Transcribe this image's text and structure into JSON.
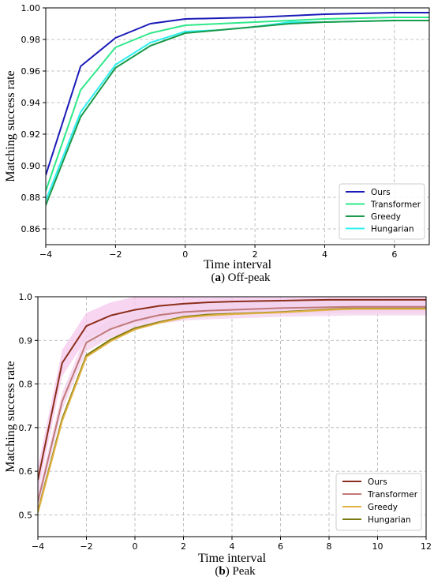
{
  "chart_data": [
    {
      "type": "line",
      "xlabel": "Time interval",
      "ylabel": "Matching success rate",
      "xlim": [
        -4,
        7
      ],
      "ylim": [
        0.85,
        1.0
      ],
      "xticks": [
        -4,
        -2,
        0,
        2,
        4,
        6
      ],
      "xtick_labels": [
        "−4",
        "−2",
        "0",
        "2",
        "4",
        "6"
      ],
      "yticks": [
        0.86,
        0.88,
        0.9,
        0.92,
        0.94,
        0.96,
        0.98,
        1.0
      ],
      "ytick_labels": [
        "0.86",
        "0.88",
        "0.90",
        "0.92",
        "0.94",
        "0.96",
        "0.98",
        "1.00"
      ],
      "grid": true,
      "legend_position": "lower-right",
      "caption_label": "a",
      "caption_text": "Off-peak",
      "x": [
        -4,
        -3,
        -2,
        -1,
        0,
        1,
        2,
        3,
        4,
        5,
        6,
        7
      ],
      "series": [
        {
          "name": "Ours",
          "color": "#1a1ab8",
          "values": [
            0.894,
            0.963,
            0.981,
            0.99,
            0.993,
            0.9935,
            0.994,
            0.995,
            0.996,
            0.9965,
            0.997,
            0.997
          ]
        },
        {
          "name": "Transformer",
          "color": "#2ee88a",
          "values": [
            0.884,
            0.948,
            0.975,
            0.984,
            0.989,
            0.99,
            0.991,
            0.992,
            0.993,
            0.9935,
            0.994,
            0.994
          ]
        },
        {
          "name": "Greedy",
          "color": "#1a9a4a",
          "values": [
            0.875,
            0.931,
            0.962,
            0.976,
            0.984,
            0.986,
            0.988,
            0.99,
            0.991,
            0.9915,
            0.992,
            0.992
          ]
        },
        {
          "name": "Hungarian",
          "color": "#2ef0f0",
          "values": [
            0.878,
            0.934,
            0.964,
            0.978,
            0.985,
            0.986,
            0.988,
            0.991,
            0.991,
            0.9915,
            0.992,
            0.992
          ]
        }
      ]
    },
    {
      "type": "line",
      "xlabel": "Time interval",
      "ylabel": "Matching success rate",
      "xlim": [
        -4,
        12
      ],
      "ylim": [
        0.45,
        1.0
      ],
      "xticks": [
        -4,
        -2,
        0,
        2,
        4,
        6,
        8,
        10,
        12
      ],
      "xtick_labels": [
        "−4",
        "−2",
        "0",
        "2",
        "4",
        "6",
        "8",
        "10",
        "12"
      ],
      "yticks": [
        0.5,
        0.6,
        0.7,
        0.8,
        0.9,
        1.0
      ],
      "ytick_labels": [
        "0.5",
        "0.6",
        "0.7",
        "0.8",
        "0.9",
        "1.0"
      ],
      "grid": true,
      "legend_position": "lower-right",
      "caption_label": "b",
      "caption_text": "Peak",
      "x": [
        -4,
        -3,
        -2,
        -1,
        0,
        1,
        2,
        3,
        4,
        5,
        6,
        7,
        8,
        9,
        10,
        11,
        12
      ],
      "series": [
        {
          "name": "Ours",
          "color": "#8b2e1a",
          "band_color": "#f6c8ec",
          "band": 0.03,
          "values": [
            0.58,
            0.848,
            0.933,
            0.957,
            0.97,
            0.979,
            0.984,
            0.987,
            0.989,
            0.99,
            0.991,
            0.992,
            0.993,
            0.993,
            0.993,
            0.993,
            0.993
          ]
        },
        {
          "name": "Transformer",
          "color": "#c07878",
          "band_color": "#f3d2ec",
          "band": 0.02,
          "values": [
            0.53,
            0.76,
            0.895,
            0.926,
            0.945,
            0.958,
            0.965,
            0.968,
            0.97,
            0.972,
            0.974,
            0.975,
            0.976,
            0.977,
            0.977,
            0.977,
            0.977
          ]
        },
        {
          "name": "Greedy",
          "color": "#e0b040",
          "values": [
            0.505,
            0.715,
            0.862,
            0.898,
            0.925,
            0.94,
            0.952,
            0.957,
            0.96,
            0.962,
            0.964,
            0.967,
            0.97,
            0.972,
            0.972,
            0.972,
            0.972
          ]
        },
        {
          "name": "Hungarian",
          "color": "#7a7a10",
          "values": [
            0.508,
            0.72,
            0.866,
            0.902,
            0.928,
            0.942,
            0.954,
            0.959,
            0.961,
            0.963,
            0.965,
            0.968,
            0.971,
            0.973,
            0.973,
            0.973,
            0.973
          ]
        }
      ]
    }
  ]
}
